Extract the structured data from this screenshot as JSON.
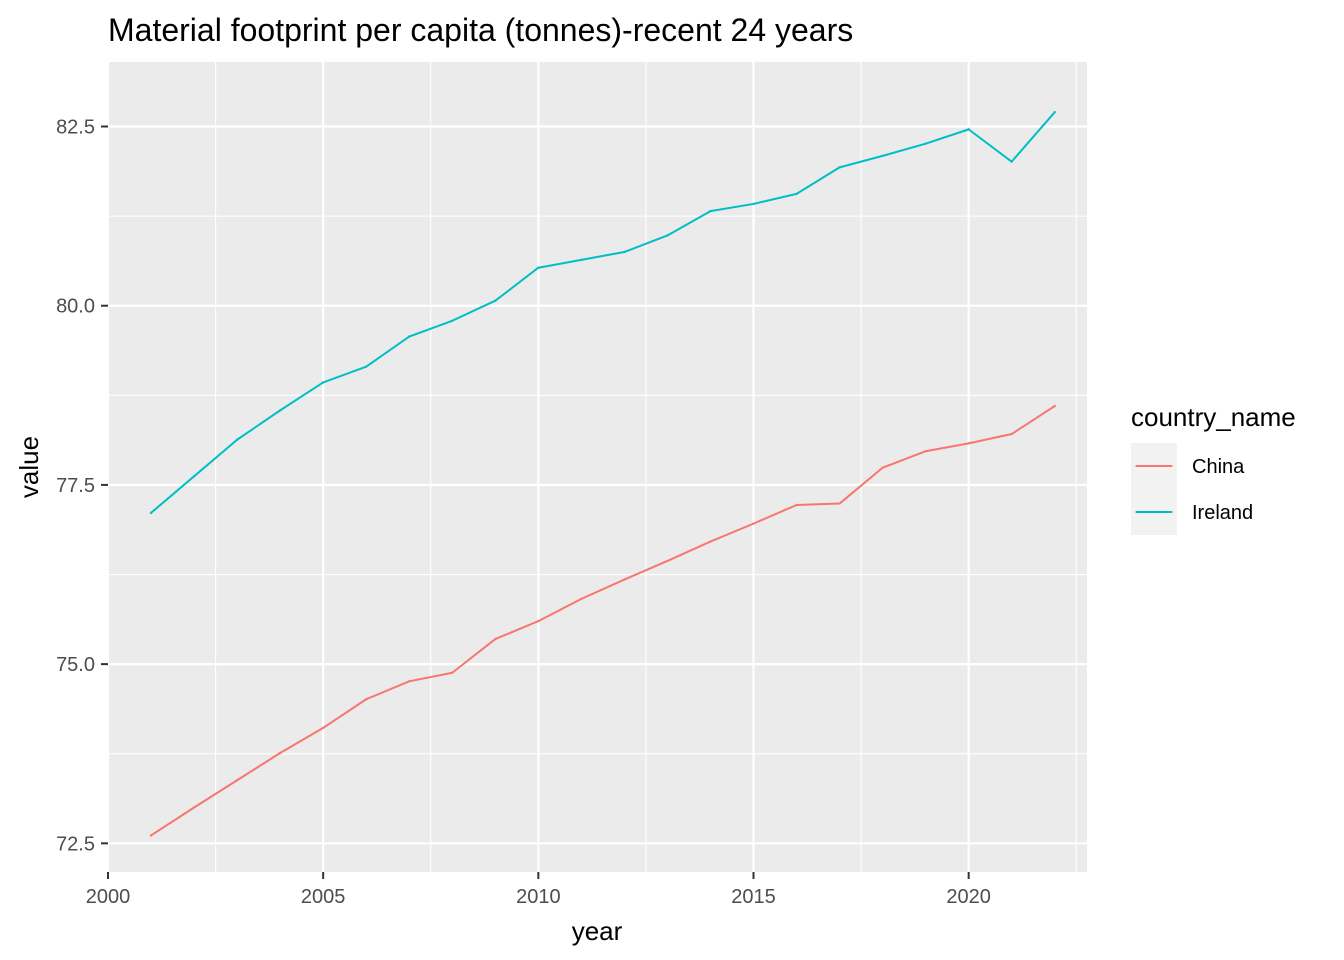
{
  "chart_data": {
    "type": "line",
    "title": "Material footprint per capita (tonnes)-recent 24 years",
    "xlabel": "year",
    "ylabel": "value",
    "xlim": [
      2000,
      2022.75
    ],
    "ylim": [
      72.1,
      83.4
    ],
    "x_ticks": [
      2000,
      2005,
      2010,
      2015,
      2020
    ],
    "x_tick_labels": [
      "2000",
      "2005",
      "2010",
      "2015",
      "2020"
    ],
    "y_ticks": [
      72.5,
      75.0,
      77.5,
      80.0,
      82.5
    ],
    "y_tick_labels": [
      "72.5",
      "75.0",
      "77.5",
      "80.0",
      "82.5"
    ],
    "grid": true,
    "legend": {
      "title": "country_name",
      "placement": "right"
    },
    "x": [
      2001,
      2002,
      2003,
      2004,
      2005,
      2006,
      2007,
      2008,
      2009,
      2010,
      2011,
      2012,
      2013,
      2014,
      2015,
      2016,
      2017,
      2018,
      2019,
      2020,
      2021,
      2022
    ],
    "series": [
      {
        "name": "China",
        "color": "#F8766D",
        "values": [
          72.61,
          73.0,
          73.38,
          73.76,
          74.11,
          74.51,
          74.76,
          74.88,
          75.35,
          75.6,
          75.91,
          76.18,
          76.44,
          76.71,
          76.96,
          77.22,
          77.24,
          77.74,
          77.97,
          78.08,
          78.21,
          78.6
        ]
      },
      {
        "name": "Ireland",
        "color": "#00BFC4",
        "values": [
          77.11,
          77.62,
          78.13,
          78.54,
          78.93,
          79.15,
          79.57,
          79.79,
          80.07,
          80.53,
          80.64,
          80.75,
          80.98,
          81.32,
          81.42,
          81.56,
          81.93,
          82.09,
          82.26,
          82.46,
          82.01,
          82.7
        ]
      }
    ]
  }
}
